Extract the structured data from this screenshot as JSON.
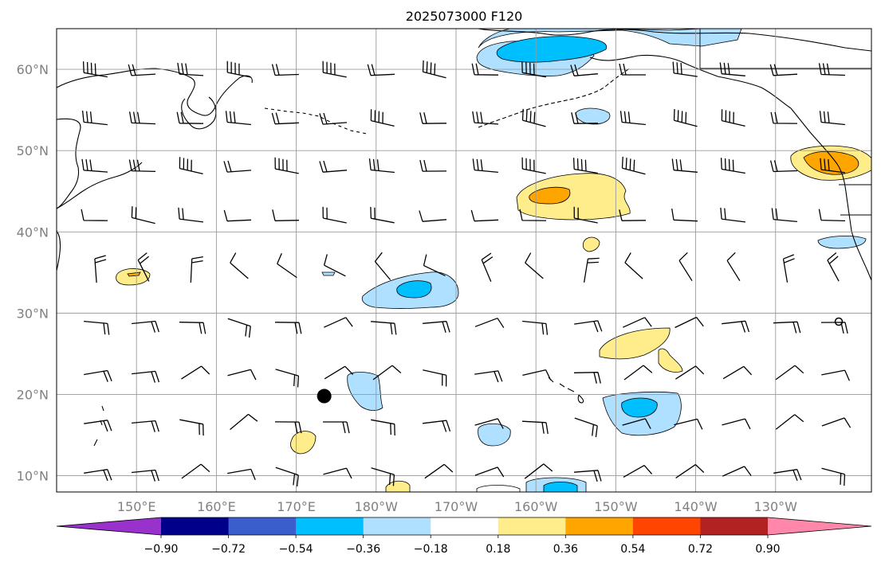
{
  "title": "2025073000 F120",
  "map": {
    "lat_labels": [
      "60°N",
      "50°N",
      "40°N",
      "30°N",
      "20°N",
      "10°N"
    ],
    "lon_labels": [
      "150°E",
      "160°E",
      "170°E",
      "180°W",
      "170°W",
      "160°W",
      "150°W",
      "140°W",
      "130°W"
    ],
    "lat_ticks_deg": [
      60,
      50,
      40,
      30,
      20,
      10
    ],
    "lon_ticks_deg_east": [
      150,
      160,
      170,
      180,
      190,
      200,
      210,
      220,
      230
    ],
    "extent": {
      "lon_min_deg_east": 140,
      "lon_max_deg_east": 242,
      "lat_min_deg": 8,
      "lat_max_deg": 65
    },
    "gridlines": true,
    "marker": {
      "lon_deg_east": 173.5,
      "lat_deg": 19.8,
      "label": ""
    }
  },
  "colorbar": {
    "ticks": [
      "−0.90",
      "−0.72",
      "−0.54",
      "−0.36",
      "−0.18",
      "0.18",
      "0.36",
      "0.54",
      "0.72",
      "0.90"
    ],
    "colors": [
      "#9932cc",
      "#00008b",
      "#3a5fcd",
      "#00bfff",
      "#b0e0ff",
      "#ffffff",
      "#ffec8b",
      "#ffa500",
      "#ff4500",
      "#b22222",
      "#ff88aa"
    ],
    "extend": "both"
  },
  "palette": {
    "neg_strong": "#00bfff",
    "neg_weak": "#b0e0ff",
    "pos_weak": "#ffec8b",
    "pos_strong": "#ffa500"
  }
}
